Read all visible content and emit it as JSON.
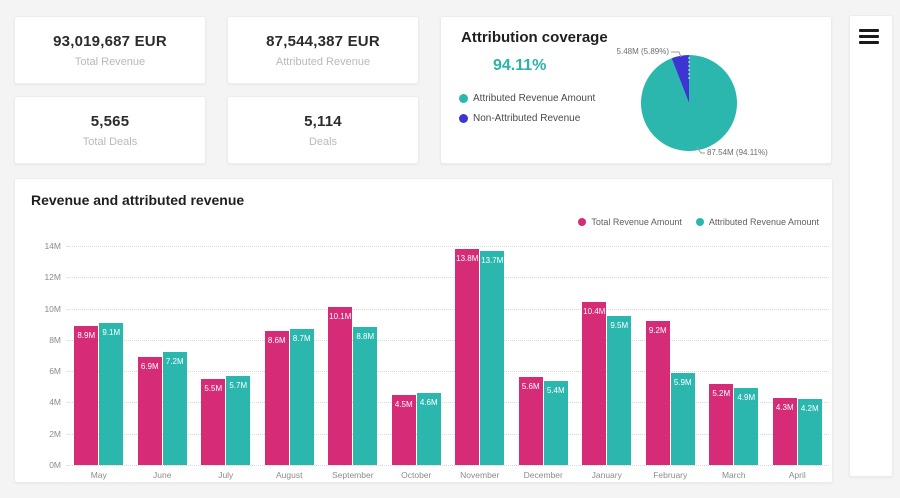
{
  "theme": {
    "background": "#f4f4f4",
    "card_background": "#ffffff",
    "accent_teal": "#2cb7ae",
    "accent_pink": "#d62b77",
    "accent_blue": "#3d35d1",
    "text_dark": "#222222",
    "text_muted": "#b9b9b9",
    "axis_text": "#8c8c8c"
  },
  "kpis": [
    {
      "value": "93,019,687 EUR",
      "label": "Total Revenue"
    },
    {
      "value": "87,544,387 EUR",
      "label": "Attributed Revenue"
    },
    {
      "value": "5,565",
      "label": "Total Deals"
    },
    {
      "value": "5,114",
      "label": "Deals"
    }
  ],
  "attribution": {
    "title": "Attribution coverage",
    "coverage_percent": "94.11%",
    "legend": [
      {
        "label": "Attributed Revenue Amount",
        "color": "#2cb7ae"
      },
      {
        "label": "Non-Attributed Revenue",
        "color": "#3d35d1"
      }
    ],
    "callouts": {
      "small": "5.48M (5.89%)",
      "large": "87.54M (94.11%)"
    }
  },
  "revenue_chart": {
    "title": "Revenue and attributed revenue",
    "legend": [
      {
        "label": "Total Revenue Amount",
        "color": "#d62b77"
      },
      {
        "label": "Attributed Revenue Amount",
        "color": "#2cb7ae"
      }
    ],
    "y_ticks": [
      "14M",
      "12M",
      "10M",
      "8M",
      "6M",
      "4M",
      "2M",
      "0M"
    ]
  },
  "chart_data": [
    {
      "type": "pie",
      "title": "Attribution coverage",
      "labels": [
        "Attributed Revenue Amount",
        "Non-Attributed Revenue"
      ],
      "values": [
        87.54,
        5.48
      ],
      "percents": [
        94.11,
        5.89
      ],
      "unit": "M",
      "colors": [
        "#2cb7ae",
        "#3d35d1"
      ],
      "start_angle_deg": 0,
      "direction": "clockwise",
      "annotations": [
        "87.54M (94.11%)",
        "5.48M (5.89%)"
      ]
    },
    {
      "type": "bar",
      "title": "Revenue and attributed revenue",
      "categories": [
        "May",
        "June",
        "July",
        "August",
        "September",
        "October",
        "November",
        "December",
        "January",
        "February",
        "March",
        "April"
      ],
      "series": [
        {
          "name": "Total Revenue Amount",
          "color": "#d62b77",
          "values": [
            8.9,
            6.9,
            5.5,
            8.6,
            10.1,
            4.5,
            13.8,
            5.6,
            10.4,
            9.2,
            5.2,
            4.3
          ],
          "bar_labels": [
            "8.9M",
            "6.9M",
            "5.5M",
            "8.6M",
            "10.1M",
            "4.5M",
            "13.8M",
            "5.6M",
            "10.4M",
            "9.2M",
            "5.2M",
            "4.3M"
          ]
        },
        {
          "name": "Attributed Revenue Amount",
          "color": "#2cb7ae",
          "values": [
            9.1,
            7.2,
            5.7,
            8.7,
            8.8,
            4.6,
            13.7,
            5.4,
            9.5,
            5.9,
            4.9,
            4.2
          ],
          "bar_labels": [
            "9.1M",
            "7.2M",
            "5.7M",
            "8.7M",
            "8.8M",
            "4.6M",
            "13.7M",
            "5.4M",
            "9.5M",
            "5.9M",
            "4.9M",
            "4.2M"
          ]
        }
      ],
      "ylim": [
        0,
        14
      ],
      "y_tick_step": 2,
      "unit": "M",
      "grid": "dotted-horizontal",
      "legend_position": "top-right"
    }
  ]
}
